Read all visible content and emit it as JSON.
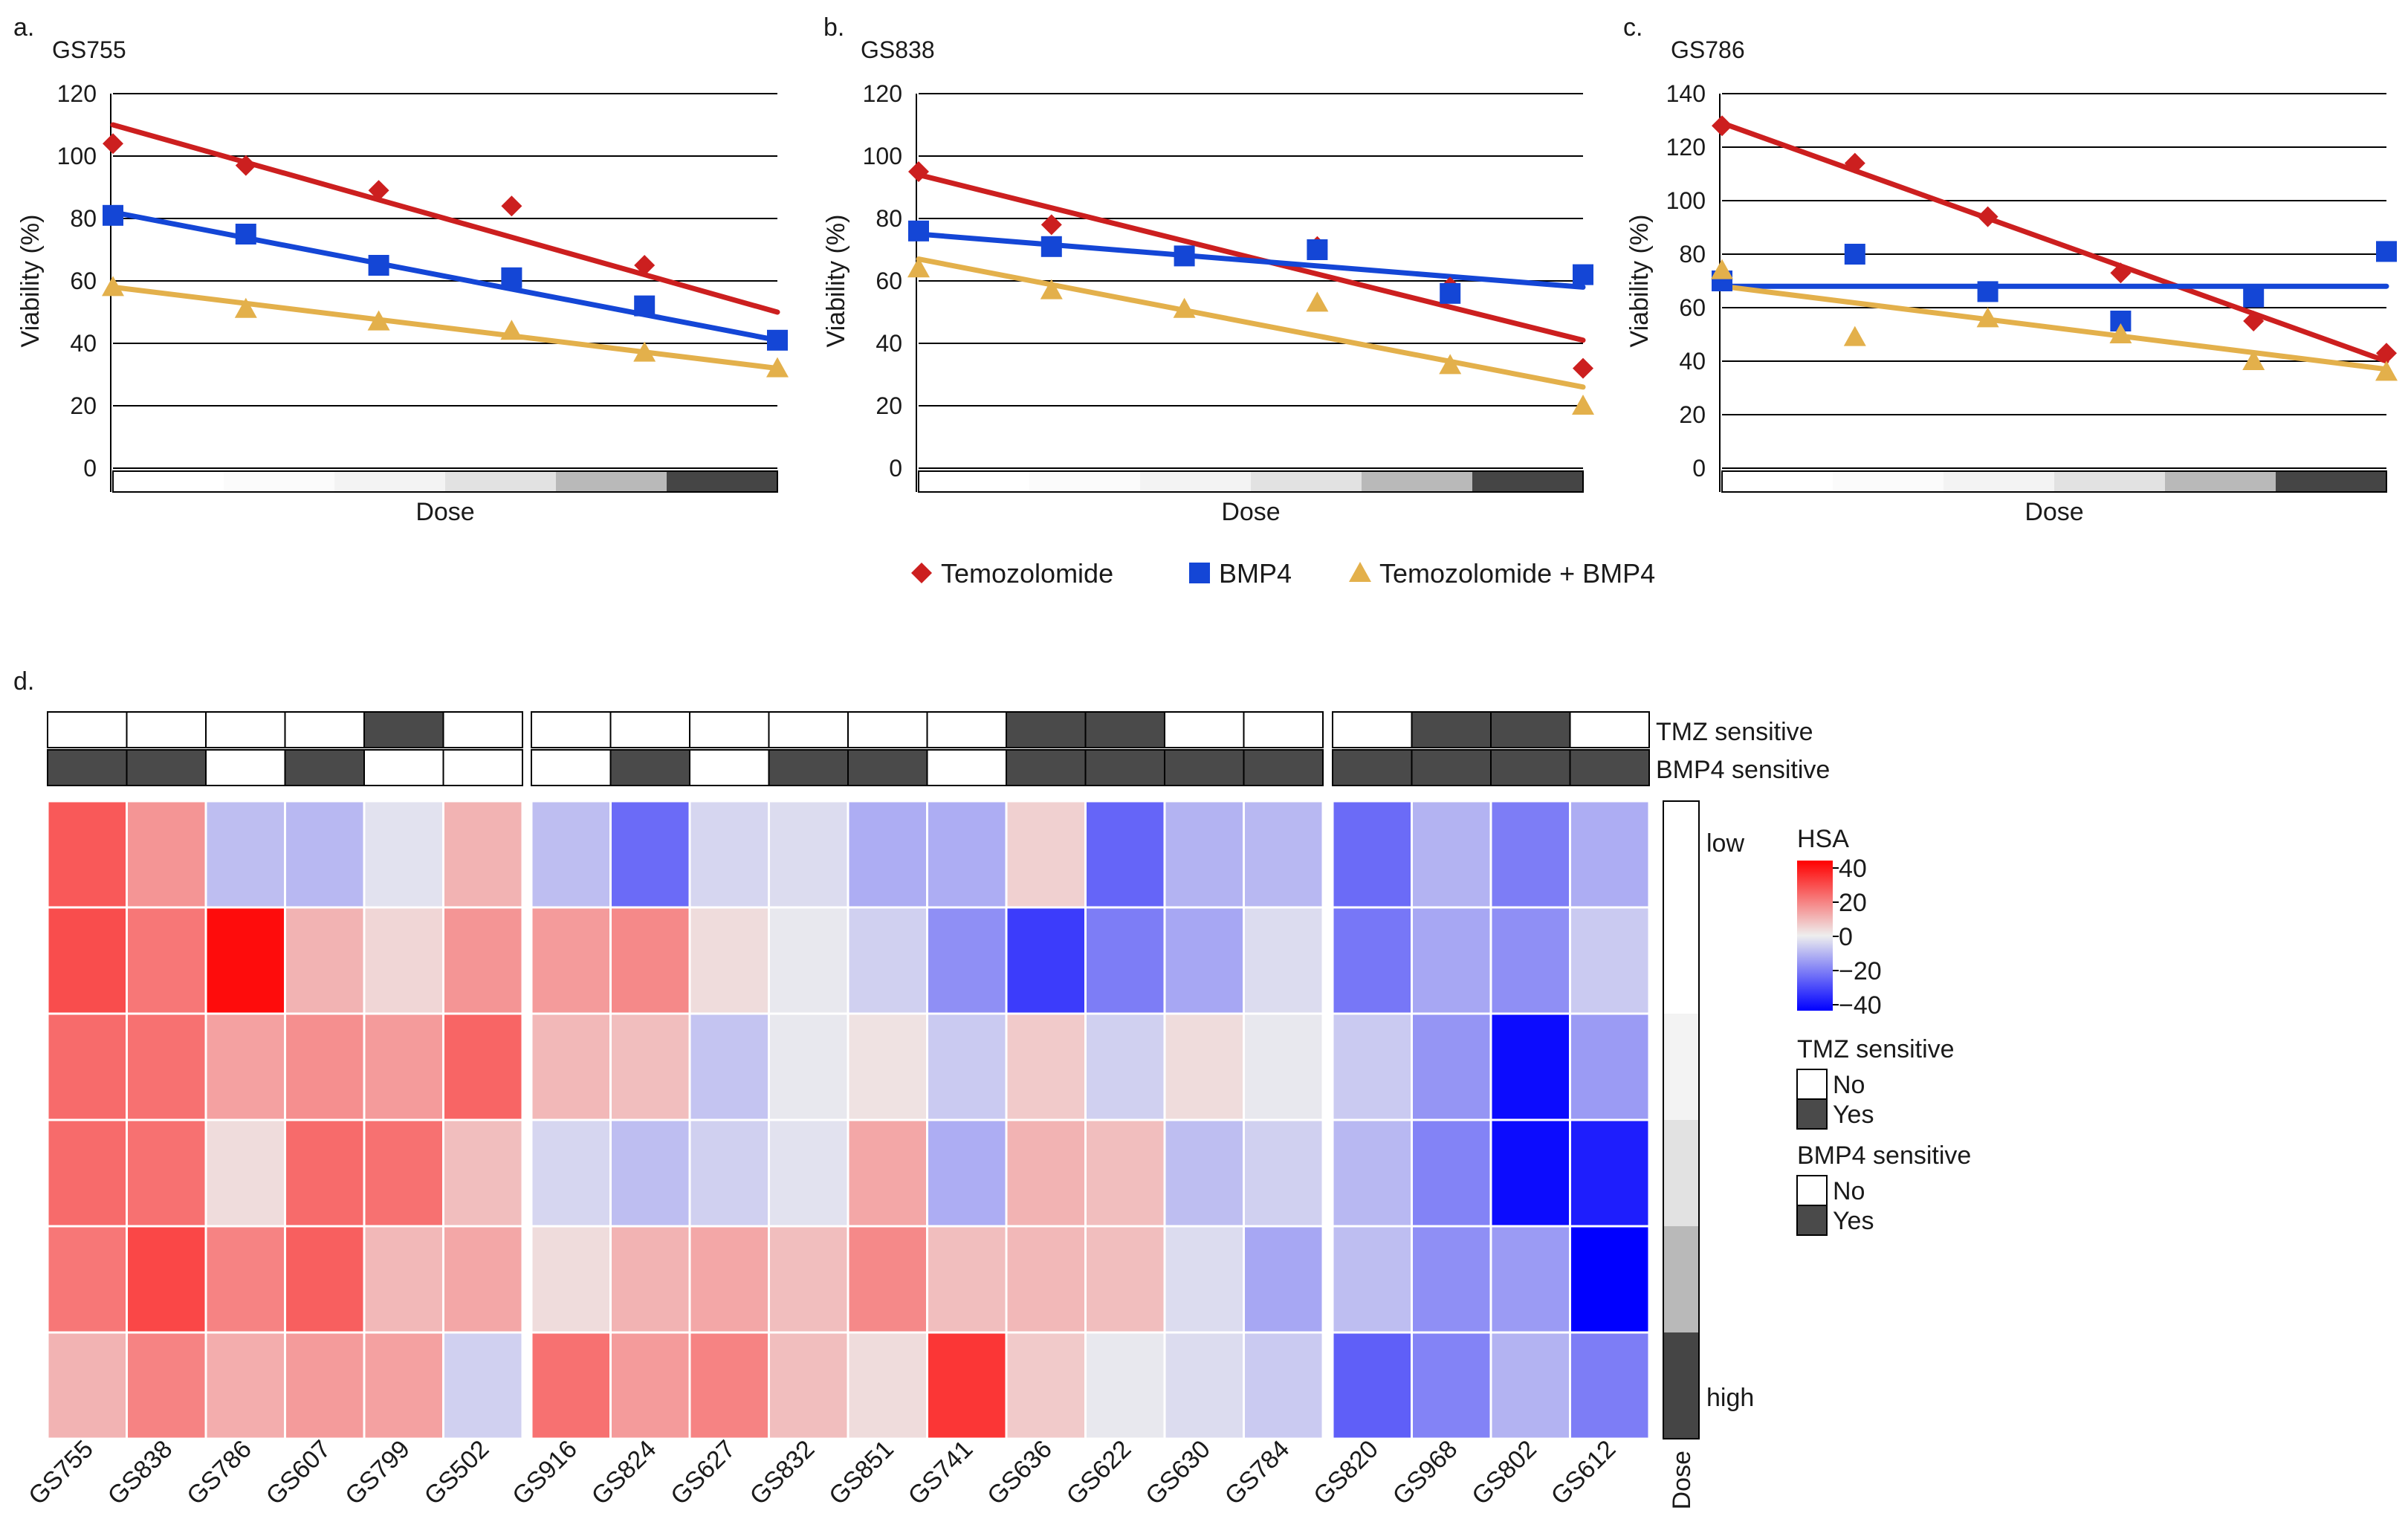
{
  "figure_letters": [
    "a.",
    "b.",
    "c.",
    "d."
  ],
  "legend": {
    "items": [
      {
        "name": "Temozolomide",
        "color": "#cc1f1f",
        "marker": "diamond"
      },
      {
        "name": "BMP4",
        "color": "#1446d6",
        "marker": "square"
      },
      {
        "name": "Temozolomide + BMP4",
        "color": "#e3b04b",
        "marker": "triangle"
      }
    ]
  },
  "chart_data": [
    {
      "type": "scatter",
      "panel": "a.",
      "title": "GS755",
      "xlabel": "Dose",
      "ylabel": "Viability (%)",
      "ylim": [
        0,
        120
      ],
      "yticks": [
        0,
        20,
        40,
        60,
        80,
        100,
        120
      ],
      "x": [
        1,
        2,
        3,
        4,
        5,
        6
      ],
      "trendlines": "linear",
      "series": [
        {
          "name": "Temozolomide",
          "values": [
            104,
            97,
            89,
            84,
            65,
            null
          ],
          "trend": [
            110,
            50
          ]
        },
        {
          "name": "BMP4",
          "values": [
            81,
            75,
            65,
            61,
            52,
            41
          ],
          "trend": [
            82,
            41
          ]
        },
        {
          "name": "Temozolomide + BMP4",
          "values": [
            58,
            51,
            47,
            44,
            37,
            32
          ],
          "trend": [
            58,
            32
          ]
        }
      ]
    },
    {
      "type": "scatter",
      "panel": "b.",
      "title": "GS838",
      "xlabel": "Dose",
      "ylabel": "Viability (%)",
      "ylim": [
        0,
        120
      ],
      "yticks": [
        0,
        20,
        40,
        60,
        80,
        100,
        120
      ],
      "x": [
        1,
        2,
        3,
        4,
        5,
        6
      ],
      "trendlines": "linear",
      "series": [
        {
          "name": "Temozolomide",
          "values": [
            95,
            78,
            null,
            71,
            58,
            32
          ],
          "trend": [
            94,
            41
          ]
        },
        {
          "name": "BMP4",
          "values": [
            76,
            71,
            68,
            70,
            56,
            62
          ],
          "trend": [
            75,
            58
          ]
        },
        {
          "name": "Temozolomide + BMP4",
          "values": [
            64,
            57,
            51,
            53,
            33,
            20
          ],
          "trend": [
            67,
            26
          ]
        }
      ]
    },
    {
      "type": "scatter",
      "panel": "c.",
      "title": "GS786",
      "xlabel": "Dose",
      "ylabel": "Viability (%)",
      "ylim": [
        0,
        140
      ],
      "yticks": [
        0,
        20,
        40,
        60,
        80,
        100,
        120,
        140
      ],
      "x": [
        1,
        2,
        3,
        4,
        5,
        6
      ],
      "trendlines": "linear",
      "series": [
        {
          "name": "Temozolomide",
          "values": [
            128,
            114,
            94,
            73,
            55,
            43
          ],
          "trend": [
            129,
            40
          ]
        },
        {
          "name": "BMP4",
          "values": [
            70,
            80,
            66,
            55,
            64,
            81
          ],
          "trend": [
            68,
            68
          ]
        },
        {
          "name": "Temozolomide + BMP4",
          "values": [
            74,
            49,
            56,
            50,
            40,
            36
          ],
          "trend": [
            68,
            37
          ]
        }
      ]
    },
    {
      "type": "heatmap",
      "panel": "d.",
      "title": "",
      "xlabel": "",
      "ylabel": "",
      "columns": [
        "GS755",
        "GS838",
        "GS786",
        "GS607",
        "GS799",
        "GS502",
        "GS916",
        "GS824",
        "GS627",
        "GS832",
        "GS851",
        "GS741",
        "GS636",
        "GS622",
        "GS630",
        "GS784",
        "GS820",
        "GS968",
        "GS802",
        "GS612"
      ],
      "column_groups": [
        6,
        10,
        4
      ],
      "rows_label": "Dose",
      "row_annotations": [
        "low",
        "high"
      ],
      "dose_gray_levels": [
        "#ffffff",
        "#ffffff",
        "#f3f3f3",
        "#e2e2e2",
        "#b9b9b9",
        "#454545"
      ],
      "values": [
        [
          25,
          15,
          -8,
          -9,
          -2,
          10,
          -8,
          -22,
          -4,
          -3,
          -11,
          -11,
          5,
          -23,
          -10,
          -9,
          -22,
          -10,
          -19,
          -11
        ],
        [
          27,
          20,
          38,
          10,
          4,
          15,
          14,
          17,
          3,
          -1,
          -5,
          -16,
          -30,
          -19,
          -12,
          -3,
          -20,
          -12,
          -16,
          -6
        ],
        [
          22,
          21,
          13,
          16,
          14,
          23,
          9,
          8,
          -7,
          -1,
          2,
          -6,
          6,
          -5,
          3,
          -1,
          -6,
          -15,
          -38,
          -14
        ],
        [
          22,
          21,
          3,
          22,
          21,
          8,
          -4,
          -8,
          -5,
          -2,
          12,
          -11,
          10,
          8,
          -8,
          -5,
          -9,
          -18,
          -38,
          -35
        ],
        [
          20,
          28,
          18,
          24,
          9,
          12,
          3,
          10,
          12,
          8,
          17,
          8,
          9,
          8,
          -3,
          -12,
          -8,
          -16,
          -14,
          -48
        ],
        [
          10,
          18,
          11,
          14,
          13,
          -5,
          21,
          14,
          18,
          8,
          3,
          31,
          6,
          -1,
          -3,
          -6,
          -24,
          -18,
          -10,
          -19
        ]
      ],
      "tmz_sensitive": [
        "No",
        "No",
        "No",
        "No",
        "Yes",
        "No",
        "No",
        "No",
        "No",
        "No",
        "No",
        "No",
        "Yes",
        "Yes",
        "No",
        "No",
        "No",
        "Yes",
        "Yes",
        "No"
      ],
      "bmp4_sensitive": [
        "Yes",
        "Yes",
        "No",
        "Yes",
        "No",
        "No",
        "No",
        "Yes",
        "No",
        "Yes",
        "Yes",
        "No",
        "Yes",
        "Yes",
        "Yes",
        "Yes",
        "Yes",
        "Yes",
        "Yes",
        "Yes"
      ],
      "annotation_labels": {
        "tmz": "TMZ sensitive",
        "bmp4": "BMP4 sensitive"
      },
      "color_scale": {
        "title": "HSA",
        "min": -40,
        "max": 40,
        "ticks": [
          "40",
          "20",
          "0",
          "−20",
          "−40"
        ],
        "low_color": "#0000ff",
        "mid_color": "#eeeeee",
        "high_color": "#ff0000"
      },
      "annotation_legend": [
        {
          "title": "TMZ sensitive",
          "entries": [
            {
              "label": "No",
              "color": "#ffffff"
            },
            {
              "label": "Yes",
              "color": "#4a4a4a"
            }
          ]
        },
        {
          "title": "BMP4 sensitive",
          "entries": [
            {
              "label": "No",
              "color": "#ffffff"
            },
            {
              "label": "Yes",
              "color": "#4a4a4a"
            }
          ]
        }
      ]
    }
  ]
}
